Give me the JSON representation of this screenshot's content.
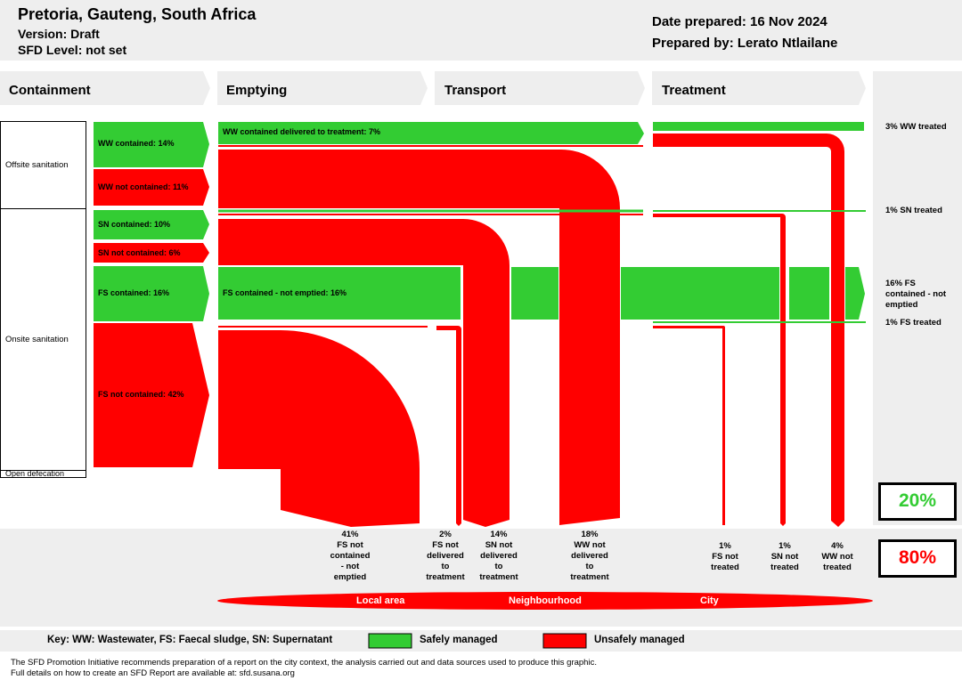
{
  "header": {
    "location": "Pretoria, Gauteng, South Africa",
    "version": "Version: Draft",
    "sfd_level": "SFD Level: not set",
    "date_prepared": "Date prepared: 16 Nov 2024",
    "prepared_by": "Prepared by: Lerato Ntlailane"
  },
  "columns": [
    "Containment",
    "Emptying",
    "Transport",
    "Treatment"
  ],
  "row_labels": {
    "offsite": "Offsite sanitation",
    "onsite": "Onsite sanitation",
    "open_defecation": "Open defecation"
  },
  "containment": {
    "ww_contained": "WW contained: 14%",
    "ww_not_contained": "WW not contained: 11%",
    "sn_contained": "SN contained: 10%",
    "sn_not_contained": "SN not contained: 6%",
    "fs_contained": "FS contained: 16%",
    "fs_not_contained": "FS not contained: 42%"
  },
  "flows": {
    "ww_delivered": "WW contained delivered to treatment: 7%",
    "fs_not_emptied": "FS contained - not emptied: 16%"
  },
  "treated": {
    "ww": "3% WW treated",
    "sn": "1% SN treated",
    "fs_not_emptied": "16% FS contained - not emptied",
    "fs": "1% FS treated"
  },
  "outcomes": [
    {
      "pct": "41%",
      "lines": [
        "FS not",
        "contained",
        "- not",
        "emptied"
      ]
    },
    {
      "pct": "2%",
      "lines": [
        "FS not",
        "delivered",
        "to",
        "treatment"
      ]
    },
    {
      "pct": "14%",
      "lines": [
        "SN not",
        "delivered",
        "to",
        "treatment"
      ]
    },
    {
      "pct": "18%",
      "lines": [
        "WW not",
        "delivered",
        "to",
        "treatment"
      ]
    },
    {
      "pct": "1%",
      "lines": [
        "FS not",
        "treated"
      ]
    },
    {
      "pct": "1%",
      "lines": [
        "SN not",
        "treated"
      ]
    },
    {
      "pct": "4%",
      "lines": [
        "WW not",
        "treated"
      ]
    }
  ],
  "summary": {
    "safe": "20%",
    "unsafe": "80%"
  },
  "scale": {
    "local": "Local area",
    "neighbourhood": "Neighbourhood",
    "city": "City"
  },
  "key": {
    "text": "Key: WW: Wastewater, FS: Faecal sludge, SN: Supernatant",
    "safe": "Safely managed",
    "unsafe": "Unsafely managed"
  },
  "footer": {
    "line1": "The SFD Promotion Initiative recommends preparation of a report on the city context, the analysis carried out and data sources used to produce this graphic.",
    "line2": "Full details on how to create an SFD Report are available at: sfd.susana.org"
  },
  "colors": {
    "safe": "#33cc33",
    "unsafe": "#ff0000",
    "panel": "#eeeeee"
  }
}
